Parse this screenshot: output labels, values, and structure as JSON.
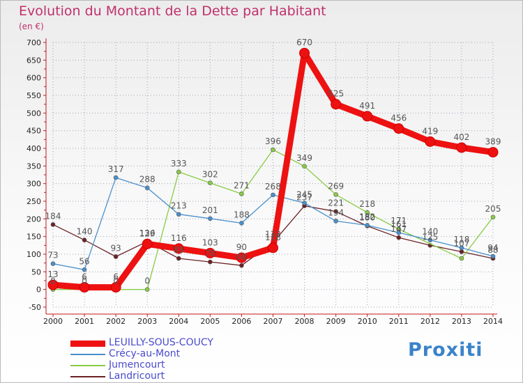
{
  "title": "Evolution du Montant de la Dette par Habitant",
  "unit": "(en €)",
  "brand": "Proxiti",
  "colors": {
    "title": "#c0306a",
    "legend_text": "#4a4acd",
    "grid": "#9aa6b8",
    "axis": "#c61818",
    "brand": "#3b83c9"
  },
  "chart_data": {
    "type": "line",
    "title": "Evolution du Montant de la Dette par Habitant",
    "ylabel": "(en €)",
    "xlabel": "",
    "categories": [
      "2000",
      "2001",
      "2002",
      "2003",
      "2004",
      "2005",
      "2006",
      "2007",
      "2008",
      "2009",
      "2010",
      "2011",
      "2012",
      "2013",
      "2014"
    ],
    "ylim": [
      -50,
      700
    ],
    "yticks": [
      "-50",
      "0",
      "50",
      "100",
      "150",
      "200",
      "250",
      "300",
      "350",
      "400",
      "450",
      "500",
      "550",
      "600",
      "650",
      "700"
    ],
    "grid": true,
    "legend_position": "bottom-left",
    "series": [
      {
        "name": "LEUILLY-SOUS-COUCY",
        "color": "#ee1111",
        "values": [
          13,
          6,
          6,
          129,
          116,
          103,
          90,
          118,
          670,
          525,
          491,
          456,
          419,
          402,
          389
        ],
        "labels": [
          "13",
          "6",
          "6",
          "129",
          "116",
          "103",
          "90",
          "118",
          "670",
          "525",
          "491",
          "456",
          "419",
          "402",
          "389"
        ]
      },
      {
        "name": "Crécy-au-Mont",
        "color": "#4a90cc",
        "values": [
          73,
          56,
          317,
          288,
          213,
          201,
          188,
          268,
          245,
          194,
          182,
          161,
          140,
          118,
          94
        ],
        "labels": [
          "73",
          "56",
          "317",
          "288",
          "213",
          "201",
          "188",
          "268",
          "245",
          "194",
          "182",
          "161",
          "140",
          "118",
          "94"
        ]
      },
      {
        "name": "Jumencourt",
        "color": "#88cc44",
        "values": [
          0,
          0,
          0,
          0,
          333,
          302,
          271,
          396,
          349,
          269,
          218,
          171,
          null,
          88,
          205
        ],
        "labels": [
          "0",
          "0",
          "0",
          "0",
          "333",
          "302",
          "271",
          "396",
          "349",
          "269",
          "218",
          "171",
          "",
          "",
          "205"
        ]
      },
      {
        "name": "Landricourt",
        "color": "#6b2226",
        "values": [
          184,
          140,
          93,
          136,
          88,
          78,
          68,
          133,
          237,
          221,
          180,
          147,
          125,
          107,
          88
        ],
        "labels": [
          "184",
          "140",
          "93",
          "136",
          "88",
          "78",
          "68",
          "133",
          "237",
          "221",
          "180",
          "147",
          "125",
          "107",
          "88"
        ]
      }
    ]
  }
}
